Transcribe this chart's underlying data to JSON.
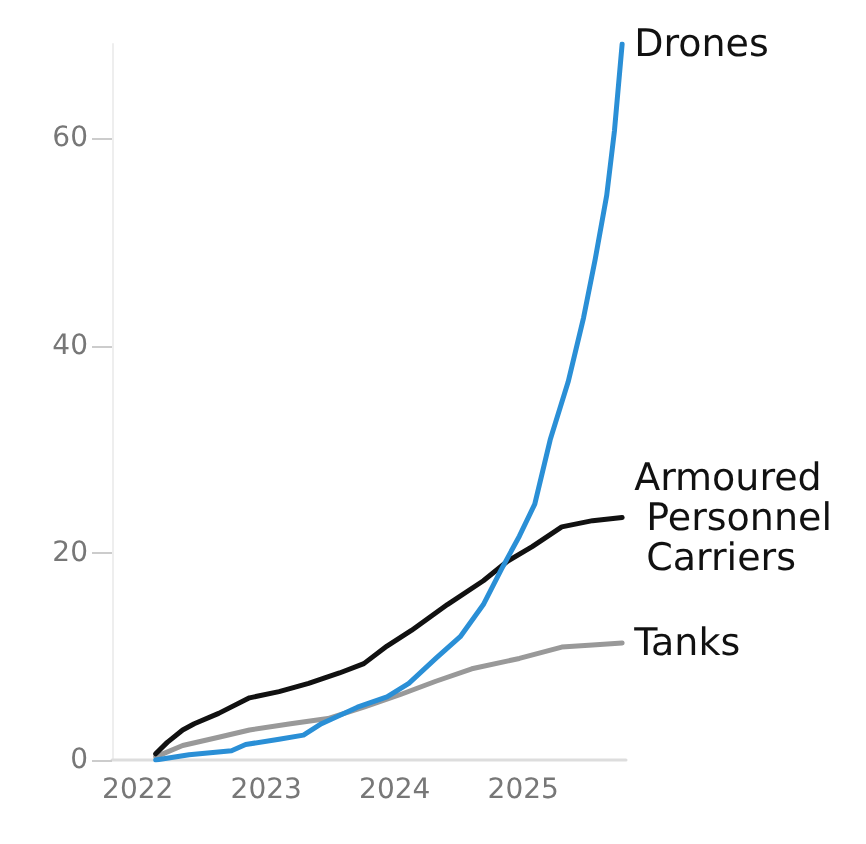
{
  "chart_data": {
    "type": "line",
    "xlim": [
      2021.8,
      2025.8
    ],
    "xticks": [
      2022,
      2023,
      2024,
      2025
    ],
    "ylim": [
      0,
      69.1
    ],
    "yticks": [
      0,
      20,
      40,
      60
    ],
    "grid": false,
    "legend": false,
    "marker": "none",
    "line_style": "solid",
    "series": [
      {
        "name": "Drones",
        "color": "#2a8fd6",
        "x": [
          2022.14,
          2022.4,
          2022.73,
          2022.84,
          2023.1,
          2023.29,
          2023.43,
          2023.71,
          2023.94,
          2024.11,
          2024.32,
          2024.51,
          2024.69,
          2024.83,
          2024.97,
          2025.09,
          2025.21,
          2025.35,
          2025.47,
          2025.56,
          2025.65,
          2025.71,
          2025.77
        ],
        "values": [
          0,
          0.5,
          0.9,
          1.5,
          2.0,
          2.4,
          3.5,
          5.1,
          6.1,
          7.4,
          9.8,
          11.9,
          15.0,
          18.4,
          21.6,
          24.7,
          30.9,
          36.5,
          42.7,
          48.3,
          54.5,
          60.7,
          69.1
        ]
      },
      {
        "name": "Armoured Personnel Carriers",
        "color": "#111111",
        "x": [
          2022.14,
          2022.23,
          2022.35,
          2022.44,
          2022.63,
          2022.87,
          2023.1,
          2023.33,
          2023.57,
          2023.76,
          2023.94,
          2024.13,
          2024.41,
          2024.69,
          2024.88,
          2025.07,
          2025.3,
          2025.54,
          2025.77
        ],
        "values": [
          0.6,
          1.7,
          2.9,
          3.5,
          4.5,
          6.0,
          6.6,
          7.4,
          8.4,
          9.3,
          11.0,
          12.5,
          15.0,
          17.3,
          19.2,
          20.6,
          22.5,
          23.1,
          23.4
        ]
      },
      {
        "name": "Tanks",
        "color": "#999999",
        "x": [
          2022.14,
          2022.35,
          2022.63,
          2022.87,
          2023.19,
          2023.48,
          2023.76,
          2024.04,
          2024.32,
          2024.6,
          2024.97,
          2025.3,
          2025.54,
          2025.77
        ],
        "values": [
          0.3,
          1.4,
          2.2,
          2.9,
          3.5,
          4.0,
          5.1,
          6.3,
          7.6,
          8.8,
          9.8,
          10.9,
          11.1,
          11.3
        ]
      }
    ]
  }
}
